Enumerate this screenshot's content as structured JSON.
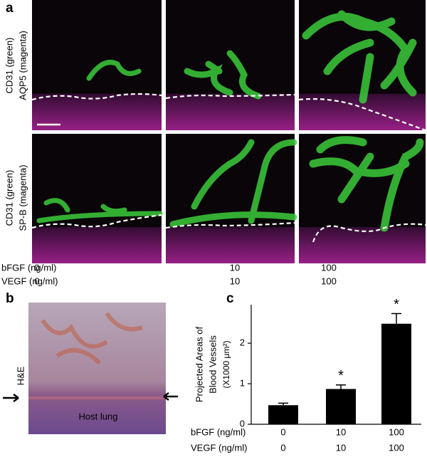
{
  "panel_a": {
    "label": "a",
    "row_labels": [
      [
        "CD31 (green)",
        "AQP5 (magenta)"
      ],
      [
        "CD31 (green)",
        "SP-B (magenta)"
      ]
    ],
    "condition_rows": [
      {
        "name": "bFGF (ng/ml)",
        "labels": [
          "0",
          "10",
          "100"
        ]
      },
      {
        "name": "VEGF (ng/ml)",
        "labels": [
          "0",
          "10",
          "100"
        ]
      }
    ]
  },
  "panel_b": {
    "label": "b",
    "stain": "H&E",
    "tissue": "Host lung"
  },
  "chart_data": {
    "type": "bar",
    "panel_label": "c",
    "ylabel": [
      "Projected Areas of",
      "Blood Vessels",
      "(X1000 μm²)"
    ],
    "categories": [
      "0",
      "10",
      "100"
    ],
    "values": [
      0.47,
      0.87,
      2.48
    ],
    "errors": [
      0.05,
      0.1,
      0.25
    ],
    "significance": [
      null,
      "*",
      "*"
    ],
    "color": "#000000",
    "ylim": [
      0,
      2.95
    ],
    "yticks": [
      0,
      1,
      2
    ],
    "x_label_rows": [
      {
        "name": "bFGF (ng/ml)",
        "labels": [
          "0",
          "10",
          "100"
        ]
      },
      {
        "name": "VEGF (ng/ml)",
        "labels": [
          "0",
          "10",
          "100"
        ]
      }
    ]
  }
}
